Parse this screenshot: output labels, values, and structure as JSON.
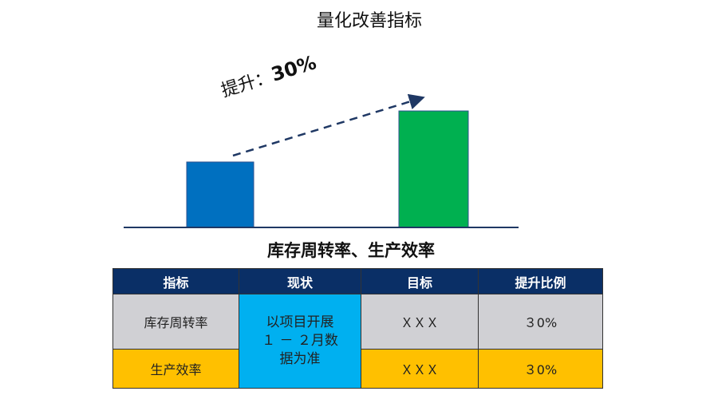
{
  "title": "量化改善指标",
  "diagram": {
    "improvement_label": "提升：",
    "improvement_value": "30%",
    "bars": [
      {
        "color": "#0070c0",
        "relative_value": 1.0
      },
      {
        "color": "#00b050",
        "relative_value": 1.78
      }
    ]
  },
  "subtitle": "库存周转率、生产效率",
  "table": {
    "headers": [
      "指标",
      "现状",
      "目标",
      "提升比例"
    ],
    "status": [
      "以项目开展",
      "１ － ２月数",
      "据为准"
    ],
    "rows": [
      {
        "metric": "库存周转率",
        "target": "ＸＸＸ",
        "ratio": "３0%",
        "color": "#d0d0d4"
      },
      {
        "metric": "生产效率",
        "target": "ＸＸＸ",
        "ratio": "３0%",
        "color": "#ffc000"
      }
    ],
    "header_color": "#0a2f66",
    "status_color": "#00b0f0"
  }
}
